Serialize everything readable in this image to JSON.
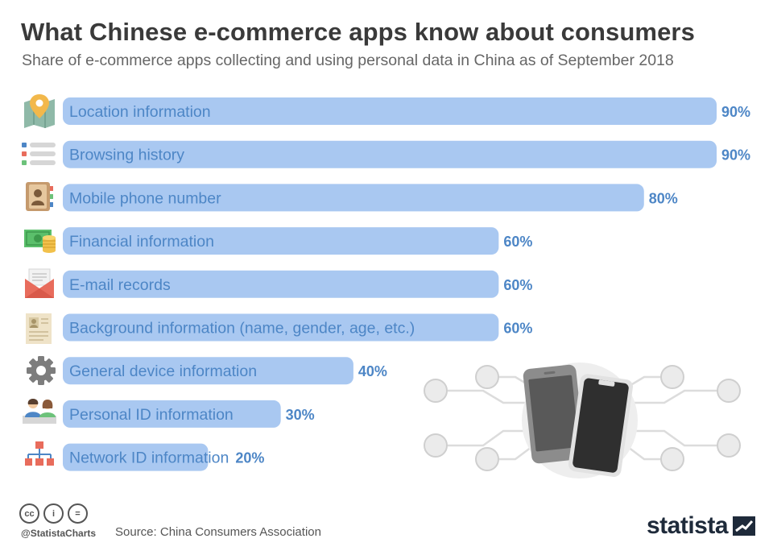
{
  "header": {
    "title": "What Chinese e-commerce apps know about consumers",
    "subtitle": "Share of e-commerce apps collecting and using personal data in China as of September 2018"
  },
  "chart_data": {
    "type": "bar",
    "orientation": "horizontal",
    "categories": [
      "Location information",
      "Browsing history",
      "Mobile phone number",
      "Financial information",
      "E-mail records",
      "Background information (name, gender, age, etc.)",
      "General device information",
      "Personal ID information",
      "Network ID information"
    ],
    "values": [
      90,
      90,
      80,
      60,
      60,
      60,
      40,
      30,
      20
    ],
    "value_labels": [
      "90%",
      "90%",
      "80%",
      "60%",
      "60%",
      "60%",
      "40%",
      "30%",
      "20%"
    ],
    "unit": "%",
    "xlim": [
      0,
      100
    ],
    "grid": false,
    "bar_color": "#a9c8f1",
    "label_color": "#4d86c6",
    "icons": [
      "map-pin-icon",
      "list-icon",
      "address-book-icon",
      "money-icon",
      "envelope-icon",
      "resume-icon",
      "gear-icon",
      "people-icon",
      "network-icon"
    ]
  },
  "footer": {
    "cc_icons": [
      "cc",
      "by",
      "nd"
    ],
    "cc_glyphs": [
      "cc",
      "i",
      "="
    ],
    "handle": "@StatistaCharts",
    "source": "Source: China Consumers Association",
    "brand": "statista"
  }
}
